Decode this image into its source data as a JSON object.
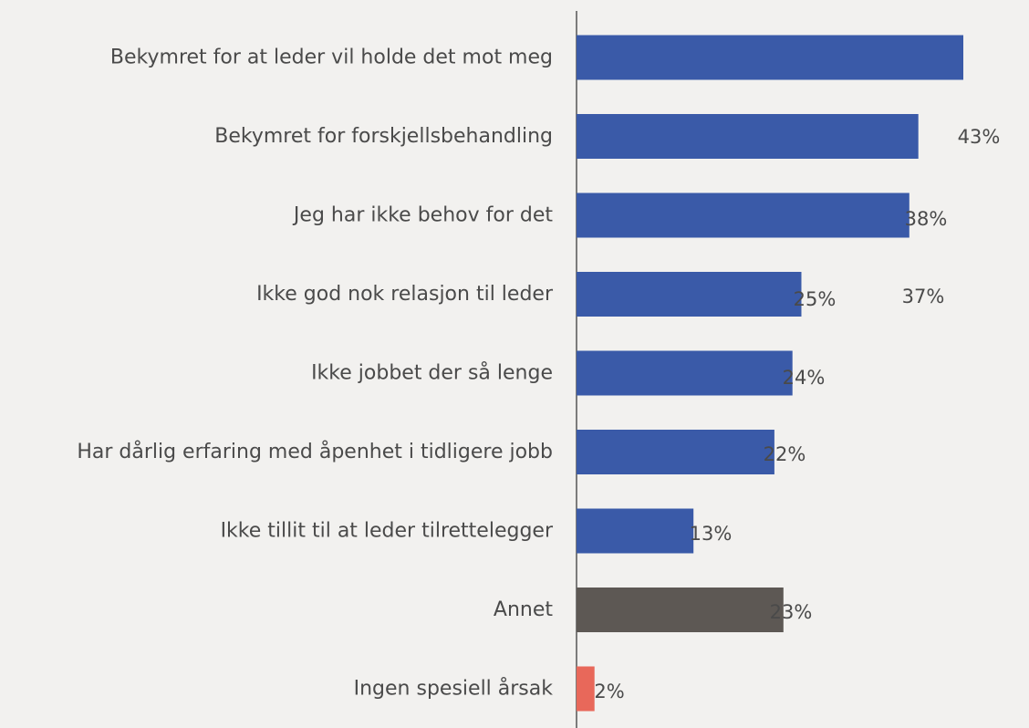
{
  "chart_data": {
    "type": "bar",
    "orientation": "horizontal",
    "categories": [
      "Bekymret for at leder vil holde det mot meg",
      "Bekymret for forskjellsbehandling",
      "Jeg har ikke behov for det",
      "Ikke god nok relasjon til leder",
      "Ikke jobbet der så lenge",
      "Har dårlig erfaring med åpenhet i tidligere jobb",
      "Ikke tillit til at leder tilrettelegger",
      "Annet",
      "Ingen spesiell årsak"
    ],
    "values": [
      43,
      38,
      37,
      25,
      24,
      22,
      13,
      23,
      2
    ],
    "value_labels": [
      "43%",
      "38%",
      "37%",
      "25%",
      "24%",
      "22%",
      "13%",
      "23%",
      "2%"
    ],
    "colors": [
      "#3a5aa8",
      "#3a5aa8",
      "#3a5aa8",
      "#3a5aa8",
      "#3a5aa8",
      "#3a5aa8",
      "#3a5aa8",
      "#5d5854",
      "#e8685a"
    ],
    "unit": "%",
    "title": "",
    "xlabel": "",
    "ylabel": "",
    "xlim": [
      0,
      43
    ],
    "grid": false,
    "legend": "none"
  },
  "colors": {
    "background": "#f2f1ef",
    "bar_primary": "#3a5aa8",
    "bar_other": "#5d5854",
    "bar_none": "#e8685a",
    "text": "#4a4a4a",
    "axis": "#555555"
  }
}
